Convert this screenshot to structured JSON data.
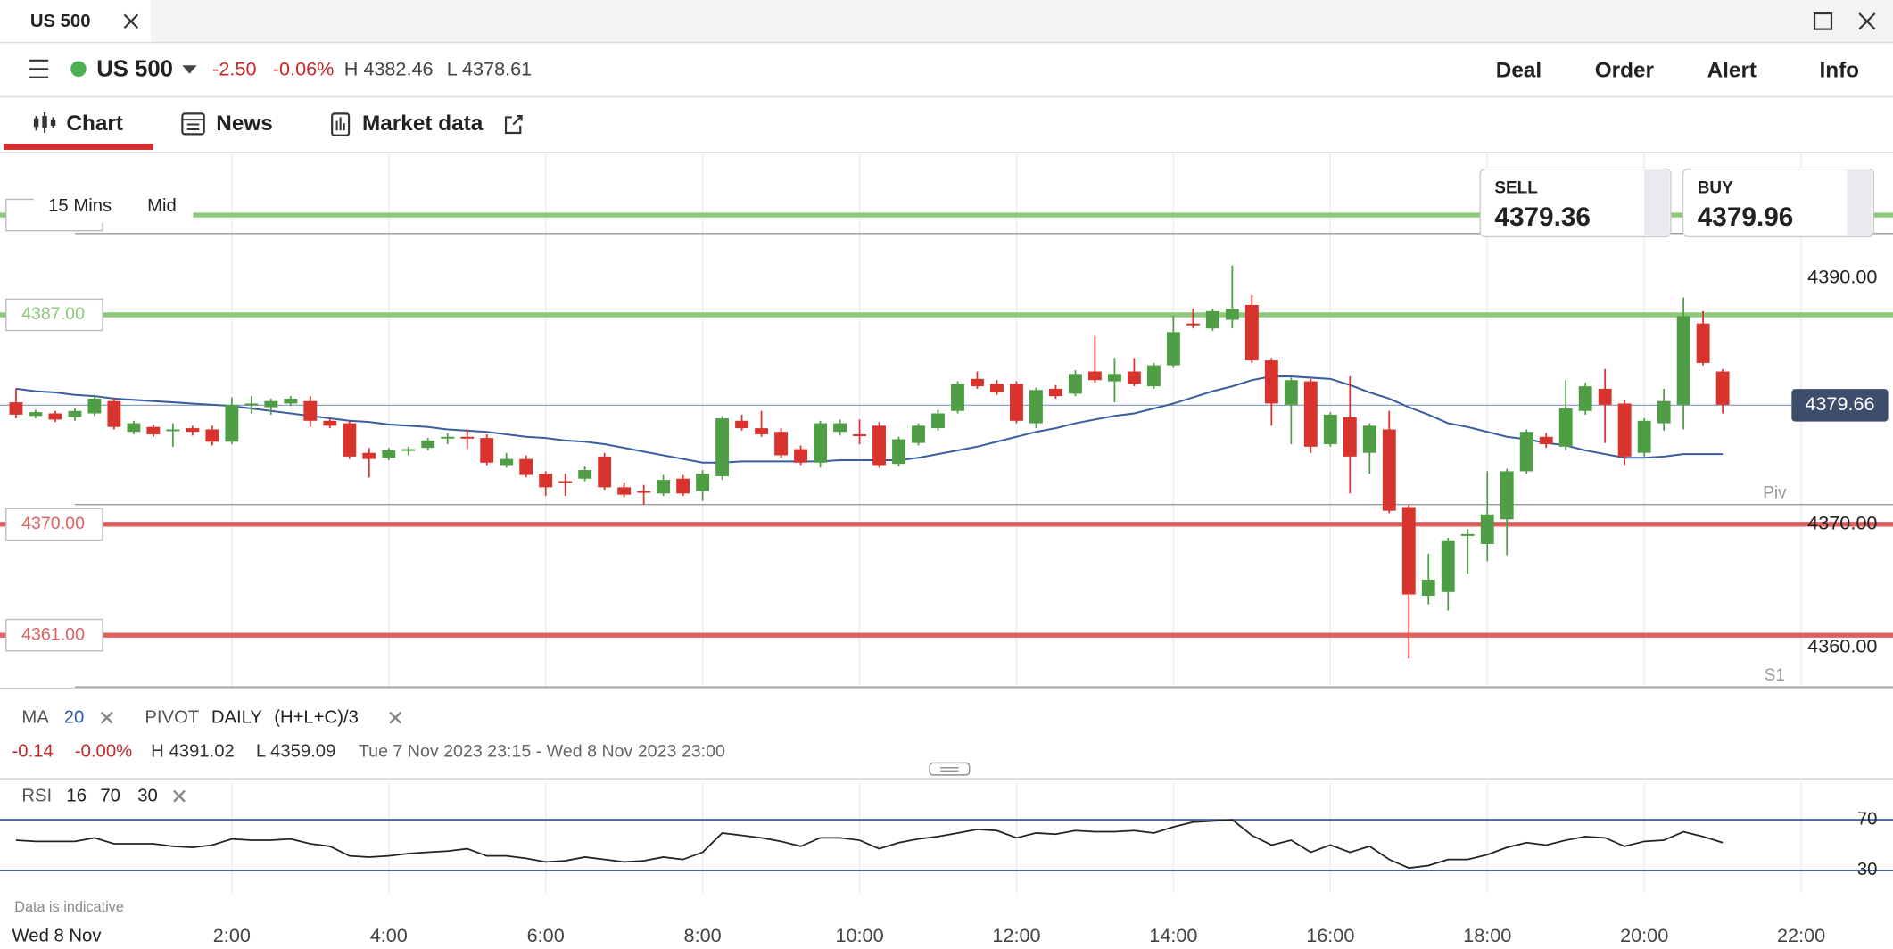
{
  "tab": {
    "title": "US 500"
  },
  "header": {
    "instrument": "US 500",
    "change": "-2.50",
    "change_pct": "-0.06%",
    "high": "H 4382.46",
    "low": "L 4378.61",
    "actions": [
      "Deal",
      "Order",
      "Alert",
      "Info"
    ]
  },
  "nav": {
    "tabs": [
      "Chart",
      "News",
      "Market data"
    ]
  },
  "toolbar": {
    "interval": "15 Mins",
    "price_type": "Mid"
  },
  "quote": {
    "sell_label": "SELL",
    "sell": "4379.36",
    "buy_label": "BUY",
    "buy": "4379.96"
  },
  "indicators": {
    "ma_label": "MA",
    "ma_period": "20",
    "pivot_label": "PIVOT",
    "pivot_period": "DAILY",
    "pivot_formula": "(H+L+C)/3"
  },
  "stats": {
    "change": "-0.14",
    "change_pct": "-0.00%",
    "high": "H 4391.02",
    "low": "L 4359.09",
    "range": "Tue 7 Nov 2023 23:15 - Wed 8 Nov 2023 23:00"
  },
  "rsi_legend": {
    "label": "RSI",
    "period": "16",
    "upper": "70",
    "lower": "30"
  },
  "disclaimer": "Data is indicative",
  "date_label": "Wed 8 Nov",
  "chart_data": [
    {
      "type": "candlestick",
      "x": [
        -0.75,
        -0.5,
        -0.25,
        0,
        0.25,
        0.5,
        0.75,
        1,
        1.25,
        1.5,
        1.75,
        2,
        2.25,
        2.5,
        2.75,
        3,
        3.25,
        3.5,
        3.75,
        4,
        4.25,
        4.5,
        4.75,
        5,
        5.25,
        5.5,
        5.75,
        6,
        6.25,
        6.5,
        6.75,
        7,
        7.25,
        7.5,
        7.75,
        8,
        8.25,
        8.5,
        8.75,
        9,
        9.25,
        9.5,
        9.75,
        10,
        10.25,
        10.5,
        10.75,
        11,
        11.25,
        11.5,
        11.75,
        12,
        12.25,
        12.5,
        12.75,
        13,
        13.25,
        13.5,
        13.75,
        14,
        14.25,
        14.5,
        14.75,
        15,
        15.25,
        15.5,
        15.75,
        16,
        16.25,
        16.5,
        16.75,
        17,
        17.25,
        17.5,
        17.75,
        18,
        18.25,
        18.5,
        18.75,
        19,
        19.25,
        19.5,
        19.75,
        20,
        20.25,
        20.5,
        20.75,
        21
      ],
      "open": [
        4379.9,
        4378.8,
        4379.0,
        4378.7,
        4379.0,
        4380.0,
        4377.5,
        4377.9,
        4377.6,
        4377.8,
        4377.7,
        4376.7,
        4379.7,
        4379.5,
        4379.8,
        4380.0,
        4378.4,
        4378.2,
        4375.8,
        4375.4,
        4376.0,
        4376.2,
        4377.0,
        4377.1,
        4377.0,
        4374.8,
        4375.3,
        4374.1,
        4373.5,
        4373.7,
        4375.5,
        4373.0,
        4372.7,
        4372.5,
        4373.7,
        4372.7,
        4373.9,
        4378.4,
        4377.8,
        4377.5,
        4376.1,
        4375.0,
        4377.5,
        4377.3,
        4378.0,
        4374.9,
        4376.6,
        4377.8,
        4379.2,
        4381.8,
        4381.4,
        4381.4,
        4378.2,
        4381.0,
        4380.6,
        4382.4,
        4381.6,
        4382.4,
        4381.2,
        4382.9,
        4386.3,
        4385.9,
        4386.6,
        4387.8,
        4383.3,
        4379.7,
        4381.6,
        4376.5,
        4378.7,
        4375.8,
        4377.7,
        4371.4,
        4364.2,
        4364.5,
        4369.1,
        4368.4,
        4370.4,
        4374.3,
        4377.1,
        4376.3,
        4379.2,
        4381.0,
        4379.8,
        4375.8,
        4378.2,
        4379.7,
        4386.3,
        4382.4
      ],
      "high": [
        4381.0,
        4379.3,
        4379.2,
        4379.4,
        4380.5,
        4380.3,
        4378.4,
        4378.1,
        4378.2,
        4378.0,
        4378.0,
        4380.3,
        4380.4,
        4380.2,
        4380.4,
        4380.4,
        4378.6,
        4378.4,
        4376.2,
        4376.2,
        4376.3,
        4377.0,
        4377.4,
        4377.7,
        4377.3,
        4375.8,
        4375.6,
        4374.3,
        4374.1,
        4374.7,
        4375.8,
        4373.4,
        4373.2,
        4374.0,
        4374.0,
        4374.4,
        4378.8,
        4378.9,
        4379.2,
        4377.8,
        4376.4,
        4378.4,
        4378.5,
        4378.5,
        4378.3,
        4377.1,
        4378.2,
        4379.3,
        4381.6,
        4382.4,
        4381.7,
        4381.6,
        4381.1,
        4381.3,
        4382.5,
        4385.3,
        4383.5,
        4383.5,
        4383.1,
        4386.9,
        4387.5,
        4387.5,
        4391.0,
        4388.6,
        4383.5,
        4381.9,
        4381.8,
        4379.1,
        4382.0,
        4378.2,
        4379.2,
        4371.6,
        4367.6,
        4368.9,
        4369.6,
        4374.3,
        4374.5,
        4377.7,
        4377.4,
        4381.7,
        4381.5,
        4382.6,
        4380.1,
        4378.6,
        4381.0,
        4388.4,
        4387.3,
        4382.6
      ],
      "low": [
        4378.6,
        4378.6,
        4378.3,
        4378.4,
        4378.8,
        4377.7,
        4377.3,
        4377.1,
        4376.3,
        4377.2,
        4376.4,
        4376.5,
        4379.0,
        4378.9,
        4379.6,
        4377.9,
        4377.8,
        4375.3,
        4373.8,
        4375.2,
        4375.6,
        4376.0,
        4376.5,
        4376.1,
        4374.8,
        4374.6,
        4373.8,
        4372.3,
        4372.3,
        4373.5,
        4372.8,
        4372.2,
        4371.6,
        4372.3,
        4372.3,
        4371.9,
        4373.6,
        4377.6,
        4377.1,
        4375.4,
        4374.8,
        4374.6,
        4377.2,
        4376.5,
        4374.6,
        4374.7,
        4376.4,
        4377.6,
        4379.0,
        4381.0,
        4380.5,
        4378.2,
        4377.8,
        4380.2,
        4380.4,
        4381.5,
        4379.9,
        4381.2,
        4381.0,
        4382.7,
        4385.9,
        4385.7,
        4385.9,
        4383.1,
        4378.0,
        4376.5,
        4375.8,
        4376.3,
        4372.5,
        4374.1,
        4370.9,
        4359.1,
        4363.5,
        4363.0,
        4366.0,
        4367.0,
        4367.5,
        4374.1,
        4376.2,
        4376.0,
        4378.9,
        4376.6,
        4374.8,
        4375.5,
        4377.6,
        4377.7,
        4382.9,
        4379.0
      ],
      "close": [
        4378.9,
        4379.1,
        4378.5,
        4379.2,
        4380.2,
        4377.9,
        4378.2,
        4377.3,
        4377.7,
        4377.5,
        4376.7,
        4379.7,
        4379.8,
        4380.0,
        4380.2,
        4378.4,
        4378.0,
        4375.5,
        4375.3,
        4376.0,
        4376.1,
        4376.8,
        4377.1,
        4377.0,
        4375.0,
        4375.3,
        4374.0,
        4373.0,
        4373.4,
        4374.4,
        4373.0,
        4372.4,
        4372.6,
        4373.6,
        4372.5,
        4374.1,
        4378.6,
        4377.8,
        4377.3,
        4375.6,
        4375.0,
        4378.2,
        4378.2,
        4377.2,
        4374.8,
        4376.9,
        4378.0,
        4379.0,
        4381.4,
        4381.2,
        4380.7,
        4378.4,
        4380.9,
        4380.4,
        4382.2,
        4381.7,
        4382.2,
        4381.4,
        4382.9,
        4385.6,
        4386.2,
        4387.3,
        4387.5,
        4383.3,
        4379.8,
        4381.7,
        4376.3,
        4378.9,
        4375.5,
        4378.0,
        4371.1,
        4364.3,
        4365.5,
        4368.7,
        4369.2,
        4370.8,
        4374.3,
        4377.5,
        4376.5,
        4379.4,
        4381.2,
        4379.7,
        4375.5,
        4378.4,
        4380.0,
        4386.9,
        4383.1,
        4379.7
      ],
      "up_color": "#4f9e45",
      "down_color": "#d8332c",
      "series": [
        {
          "color": "#3a5f9e",
          "values": [
            4381.0,
            4380.8,
            4380.7,
            4380.5,
            4380.4,
            4380.2,
            4380.1,
            4380.0,
            4379.9,
            4379.8,
            4379.7,
            4379.6,
            4379.4,
            4379.2,
            4379.0,
            4378.8,
            4378.6,
            4378.4,
            4378.3,
            4378.1,
            4378.0,
            4377.9,
            4377.7,
            4377.6,
            4377.5,
            4377.3,
            4377.1,
            4377.0,
            4376.8,
            4376.7,
            4376.5,
            4376.2,
            4375.9,
            4375.6,
            4375.3,
            4375.0,
            4375.0,
            4375.1,
            4375.1,
            4375.1,
            4375.1,
            4375.1,
            4375.2,
            4375.2,
            4375.2,
            4375.2,
            4375.4,
            4375.7,
            4376.0,
            4376.3,
            4376.7,
            4377.1,
            4377.5,
            4377.8,
            4378.2,
            4378.5,
            4378.8,
            4379.0,
            4379.4,
            4379.8,
            4380.3,
            4380.8,
            4381.2,
            4381.7,
            4382.0,
            4382.0,
            4381.9,
            4381.8,
            4381.3,
            4380.7,
            4380.2,
            4379.5,
            4378.9,
            4378.2,
            4377.9,
            4377.5,
            4377.1,
            4376.9,
            4376.6,
            4376.4,
            4376.0,
            4375.7,
            4375.4,
            4375.4,
            4375.5,
            4375.7,
            4375.7,
            4375.7
          ]
        }
      ],
      "levels": [
        {
          "value": 4395.1,
          "color": "#8cc97a"
        },
        {
          "value": 4387,
          "label": "4387.00",
          "color": "#8cc97a"
        },
        {
          "value": 4370,
          "label": "4370.00",
          "color": "#e06060"
        },
        {
          "value": 4361,
          "label": "4361.00",
          "color": "#e06060"
        }
      ],
      "pivots": [
        {
          "value": 4393.6
        },
        {
          "value": 4371.6,
          "name": "Piv"
        },
        {
          "value": 4356.8,
          "name": "S1"
        }
      ],
      "current": {
        "value": 4379.66,
        "label": "4379.66"
      },
      "xlim": [
        -0.954,
        23.17
      ],
      "xticks": [
        {
          "value": 2,
          "label": "2:00"
        },
        {
          "value": 4,
          "label": "4:00"
        },
        {
          "value": 6,
          "label": "6:00"
        },
        {
          "value": 8,
          "label": "8:00"
        },
        {
          "value": 10,
          "label": "10:00"
        },
        {
          "value": 12,
          "label": "12:00"
        },
        {
          "value": 14,
          "label": "14:00"
        },
        {
          "value": 16,
          "label": "16:00"
        },
        {
          "value": 18,
          "label": "18:00"
        },
        {
          "value": 20,
          "label": "20:00"
        },
        {
          "value": 22,
          "label": "22:00"
        }
      ],
      "ylim": [
        4356.8,
        4400.1
      ],
      "yticks": [
        {
          "value": 4360,
          "label": "4360.00"
        },
        {
          "value": 4370,
          "label": "4370.00"
        },
        {
          "value": 4390,
          "label": "4390.00"
        }
      ],
      "grid": true
    },
    {
      "type": "line",
      "series": [
        {
          "color": "#222222",
          "values": [
            53.8,
            52.9,
            52.9,
            52.9,
            55.7,
            51.0,
            51.0,
            51.0,
            49.0,
            48.1,
            50.0,
            54.8,
            53.8,
            53.8,
            54.8,
            51.0,
            49.0,
            41.4,
            40.5,
            41.4,
            43.3,
            44.3,
            45.2,
            47.1,
            41.4,
            41.4,
            39.5,
            36.7,
            37.6,
            40.5,
            38.6,
            36.7,
            37.6,
            40.5,
            38.6,
            44.3,
            59.5,
            57.6,
            55.7,
            52.9,
            49.0,
            55.7,
            55.7,
            53.8,
            47.1,
            51.9,
            54.8,
            56.7,
            59.5,
            62.4,
            61.4,
            55.7,
            59.5,
            58.6,
            61.4,
            60.5,
            60.5,
            61.4,
            59.5,
            64.3,
            68.1,
            69.0,
            70.0,
            57.6,
            50.0,
            53.8,
            44.3,
            50.0,
            44.3,
            49.0,
            38.6,
            31.9,
            33.8,
            38.6,
            38.6,
            42.4,
            48.1,
            51.9,
            50.0,
            53.8,
            56.7,
            55.7,
            49.0,
            52.9,
            53.8,
            60.5,
            56.7,
            51.9
          ]
        }
      ],
      "ylim": [
        11.9,
        99.5
      ],
      "yticks": [
        30,
        70
      ],
      "line_color": "#2f4f8a"
    }
  ]
}
